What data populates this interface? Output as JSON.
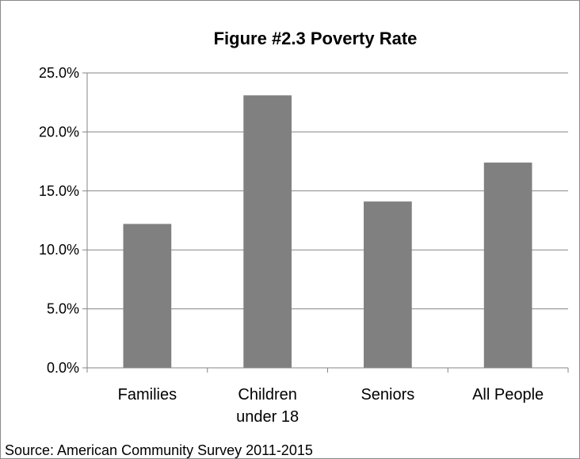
{
  "chart_data": {
    "type": "bar",
    "title": "Figure #2.3 Poverty Rate",
    "categories": [
      [
        "Families"
      ],
      [
        "Children",
        "under 18"
      ],
      [
        "Seniors"
      ],
      [
        "All People"
      ]
    ],
    "values": [
      12.2,
      23.1,
      14.1,
      17.4
    ],
    "value_unit": "%",
    "ylim": [
      0,
      25
    ],
    "y_ticks": [
      "0.0%",
      "5.0%",
      "10.0%",
      "15.0%",
      "20.0%",
      "25.0%"
    ],
    "y_tick_values": [
      0,
      5,
      10,
      15,
      20,
      25
    ],
    "xlabel": "",
    "ylabel": "",
    "grid": true,
    "legend": "none",
    "bar_color": "#808080",
    "gridline_color": "#868686"
  },
  "footer": {
    "source": "Source: American Community Survey 2011-2015"
  }
}
